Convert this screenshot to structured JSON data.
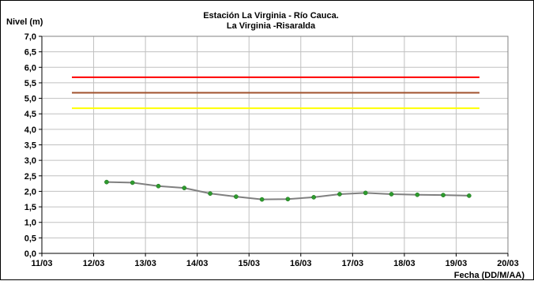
{
  "chart_data": {
    "type": "line",
    "title": "Estación La Virginia  - Río Cauca.",
    "subtitle": "La Virginia -Risaralda",
    "ylabel": "Nivel (m)",
    "xlabel": "Fecha (DD/M/AA)",
    "ylim": [
      0,
      7
    ],
    "xlim": [
      "11/03",
      "20/03"
    ],
    "yticks": [
      "0,0",
      "0,5",
      "1,0",
      "1,5",
      "2,0",
      "2,5",
      "3,0",
      "3,5",
      "4,0",
      "4,5",
      "5,0",
      "5,5",
      "6,0",
      "6,5",
      "7,0"
    ],
    "xticks": [
      "11/03",
      "12/03",
      "13/03",
      "14/03",
      "15/03",
      "16/03",
      "17/03",
      "18/03",
      "19/03",
      "20/03"
    ],
    "grid": true,
    "thresholds": [
      {
        "value": 5.68,
        "x_start": 11.58,
        "x_end": 19.45,
        "color": "#ff0000"
      },
      {
        "value": 5.18,
        "x_start": 11.58,
        "x_end": 19.45,
        "color": "#a0522d"
      },
      {
        "value": 4.68,
        "x_start": 11.58,
        "x_end": 19.45,
        "color": "#ffff00"
      }
    ],
    "series": [
      {
        "line_color": "#808080",
        "marker_color": "#2e9a2e",
        "x": [
          12.25,
          12.75,
          13.25,
          13.75,
          14.25,
          14.75,
          15.25,
          15.75,
          16.25,
          16.75,
          17.25,
          17.75,
          18.25,
          18.75,
          19.25
        ],
        "values": [
          2.3,
          2.28,
          2.17,
          2.11,
          1.93,
          1.83,
          1.74,
          1.75,
          1.81,
          1.91,
          1.95,
          1.91,
          1.89,
          1.88,
          1.86
        ]
      }
    ]
  }
}
